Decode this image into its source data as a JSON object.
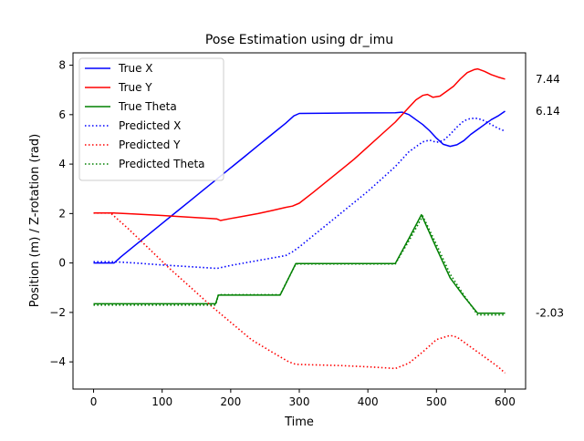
{
  "chart_data": {
    "type": "line",
    "title": "Pose Estimation using dr_imu",
    "xlabel": "Time",
    "ylabel": "Position (m) / Z-rotation (rad)",
    "xlim": [
      -30,
      630
    ],
    "ylim": [
      -5.1,
      8.5
    ],
    "xticks": [
      0,
      100,
      200,
      300,
      400,
      500,
      600
    ],
    "yticks": [
      -4,
      -2,
      0,
      2,
      4,
      6,
      8
    ],
    "grid": false,
    "legend_position": "top-left",
    "end_annotations": [
      "7.44",
      "6.14",
      "-2.03"
    ],
    "series": [
      {
        "name": "True X",
        "color": "#0000ff",
        "style": "solid",
        "points": [
          [
            0,
            0.0
          ],
          [
            30,
            0.0
          ],
          [
            40,
            0.25
          ],
          [
            60,
            0.7
          ],
          [
            80,
            1.15
          ],
          [
            100,
            1.6
          ],
          [
            120,
            2.05
          ],
          [
            140,
            2.5
          ],
          [
            160,
            2.95
          ],
          [
            180,
            3.4
          ],
          [
            200,
            3.85
          ],
          [
            220,
            4.3
          ],
          [
            240,
            4.75
          ],
          [
            260,
            5.2
          ],
          [
            280,
            5.65
          ],
          [
            292,
            5.95
          ],
          [
            300,
            6.05
          ],
          [
            340,
            6.06
          ],
          [
            400,
            6.07
          ],
          [
            440,
            6.08
          ],
          [
            450,
            6.1
          ],
          [
            460,
            6.0
          ],
          [
            470,
            5.8
          ],
          [
            480,
            5.6
          ],
          [
            490,
            5.35
          ],
          [
            500,
            5.05
          ],
          [
            510,
            4.8
          ],
          [
            520,
            4.72
          ],
          [
            530,
            4.78
          ],
          [
            540,
            4.95
          ],
          [
            550,
            5.2
          ],
          [
            560,
            5.4
          ],
          [
            570,
            5.6
          ],
          [
            580,
            5.8
          ],
          [
            590,
            5.95
          ],
          [
            600,
            6.14
          ]
        ]
      },
      {
        "name": "True Y",
        "color": "#ff0000",
        "style": "solid",
        "points": [
          [
            0,
            2.02
          ],
          [
            30,
            2.02
          ],
          [
            60,
            1.98
          ],
          [
            100,
            1.92
          ],
          [
            140,
            1.85
          ],
          [
            170,
            1.8
          ],
          [
            180,
            1.78
          ],
          [
            185,
            1.72
          ],
          [
            200,
            1.8
          ],
          [
            220,
            1.9
          ],
          [
            240,
            2.0
          ],
          [
            260,
            2.12
          ],
          [
            280,
            2.25
          ],
          [
            290,
            2.3
          ],
          [
            300,
            2.42
          ],
          [
            320,
            2.85
          ],
          [
            340,
            3.3
          ],
          [
            360,
            3.75
          ],
          [
            380,
            4.2
          ],
          [
            400,
            4.7
          ],
          [
            420,
            5.2
          ],
          [
            440,
            5.7
          ],
          [
            460,
            6.3
          ],
          [
            470,
            6.6
          ],
          [
            480,
            6.78
          ],
          [
            487,
            6.82
          ],
          [
            495,
            6.7
          ],
          [
            505,
            6.75
          ],
          [
            515,
            6.95
          ],
          [
            525,
            7.15
          ],
          [
            535,
            7.45
          ],
          [
            545,
            7.7
          ],
          [
            555,
            7.82
          ],
          [
            560,
            7.85
          ],
          [
            570,
            7.75
          ],
          [
            580,
            7.62
          ],
          [
            590,
            7.52
          ],
          [
            600,
            7.44
          ]
        ]
      },
      {
        "name": "True Theta",
        "color": "#008000",
        "style": "solid",
        "points": [
          [
            0,
            -1.65
          ],
          [
            178,
            -1.65
          ],
          [
            182,
            -1.3
          ],
          [
            272,
            -1.3
          ],
          [
            295,
            -0.02
          ],
          [
            440,
            -0.02
          ],
          [
            460,
            1.0
          ],
          [
            478,
            1.95
          ],
          [
            500,
            0.6
          ],
          [
            520,
            -0.6
          ],
          [
            540,
            -1.35
          ],
          [
            560,
            -2.03
          ],
          [
            600,
            -2.03
          ]
        ]
      },
      {
        "name": "Predicted X",
        "color": "#0000ff",
        "style": "dotted",
        "points": [
          [
            0,
            0.05
          ],
          [
            30,
            0.05
          ],
          [
            60,
            0.0
          ],
          [
            100,
            -0.08
          ],
          [
            140,
            -0.15
          ],
          [
            170,
            -0.2
          ],
          [
            180,
            -0.22
          ],
          [
            200,
            -0.1
          ],
          [
            220,
            0.0
          ],
          [
            240,
            0.1
          ],
          [
            260,
            0.2
          ],
          [
            280,
            0.3
          ],
          [
            290,
            0.45
          ],
          [
            300,
            0.65
          ],
          [
            320,
            1.1
          ],
          [
            340,
            1.55
          ],
          [
            360,
            2.0
          ],
          [
            380,
            2.45
          ],
          [
            400,
            2.9
          ],
          [
            420,
            3.4
          ],
          [
            440,
            3.9
          ],
          [
            460,
            4.5
          ],
          [
            480,
            4.9
          ],
          [
            490,
            4.97
          ],
          [
            500,
            4.88
          ],
          [
            510,
            4.95
          ],
          [
            520,
            5.2
          ],
          [
            530,
            5.5
          ],
          [
            540,
            5.75
          ],
          [
            550,
            5.85
          ],
          [
            560,
            5.85
          ],
          [
            570,
            5.75
          ],
          [
            580,
            5.6
          ],
          [
            590,
            5.45
          ],
          [
            600,
            5.33
          ]
        ]
      },
      {
        "name": "Predicted Y",
        "color": "#ff0000",
        "style": "dotted",
        "points": [
          [
            0,
            2.02
          ],
          [
            25,
            2.02
          ],
          [
            50,
            1.4
          ],
          [
            80,
            0.6
          ],
          [
            110,
            -0.2
          ],
          [
            140,
            -0.95
          ],
          [
            170,
            -1.7
          ],
          [
            200,
            -2.4
          ],
          [
            230,
            -3.1
          ],
          [
            260,
            -3.6
          ],
          [
            285,
            -4.0
          ],
          [
            295,
            -4.1
          ],
          [
            320,
            -4.12
          ],
          [
            360,
            -4.15
          ],
          [
            400,
            -4.2
          ],
          [
            430,
            -4.25
          ],
          [
            440,
            -4.27
          ],
          [
            460,
            -4.05
          ],
          [
            480,
            -3.6
          ],
          [
            500,
            -3.1
          ],
          [
            520,
            -2.93
          ],
          [
            530,
            -3.0
          ],
          [
            550,
            -3.4
          ],
          [
            570,
            -3.8
          ],
          [
            590,
            -4.2
          ],
          [
            600,
            -4.45
          ]
        ]
      },
      {
        "name": "Predicted Theta",
        "color": "#008000",
        "style": "dotted",
        "points": [
          [
            0,
            -1.7
          ],
          [
            178,
            -1.7
          ],
          [
            182,
            -1.28
          ],
          [
            272,
            -1.28
          ],
          [
            295,
            -0.04
          ],
          [
            440,
            -0.04
          ],
          [
            460,
            0.9
          ],
          [
            480,
            1.9
          ],
          [
            500,
            0.75
          ],
          [
            520,
            -0.45
          ],
          [
            540,
            -1.3
          ],
          [
            560,
            -2.1
          ],
          [
            600,
            -2.1
          ]
        ]
      }
    ]
  }
}
